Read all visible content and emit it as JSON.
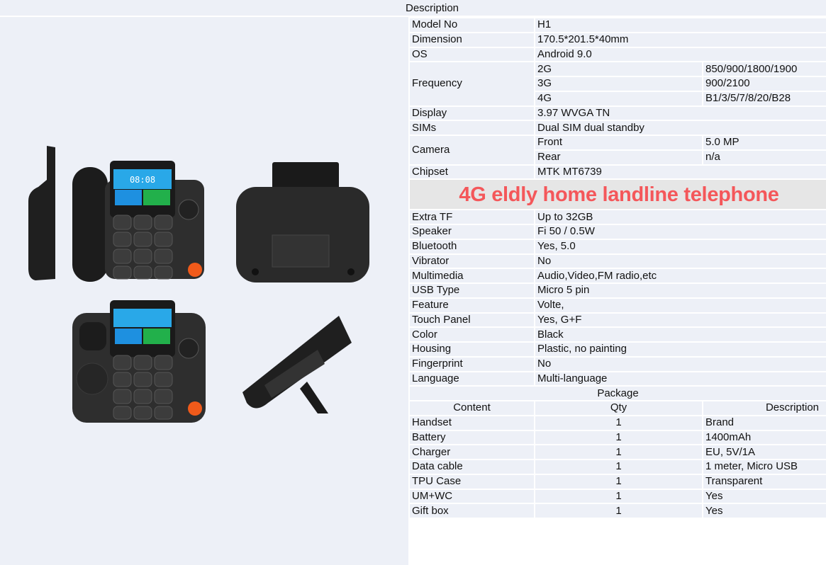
{
  "header": {
    "title": "Description"
  },
  "specs": [
    {
      "label": "Model No",
      "value": "H1"
    },
    {
      "label": "Dimension",
      "value": "170.5*201.5*40mm"
    },
    {
      "label": "OS",
      "value": "Android 9.0"
    }
  ],
  "frequency": {
    "label": "Frequency",
    "bands": [
      {
        "band": "2G",
        "value": "850/900/1800/1900"
      },
      {
        "band": "3G",
        "value": "900/2100"
      },
      {
        "band": "4G",
        "value": "B1/3/5/7/8/20/B28"
      }
    ]
  },
  "specs2": [
    {
      "label": "Display",
      "value": "3.97 WVGA TN"
    },
    {
      "label": "SIMs",
      "value": "Dual SIM dual standby"
    }
  ],
  "camera": {
    "label": "Camera",
    "items": [
      {
        "name": "Front",
        "value": "5.0 MP"
      },
      {
        "name": "Rear",
        "value": "n/a"
      }
    ]
  },
  "chipset": {
    "label": "Chipset",
    "value": "MTK MT6739"
  },
  "banner": "4G eldly home landline telephone",
  "specs3": [
    {
      "label": "Extra TF",
      "value": "Up to 32GB"
    },
    {
      "label": "Speaker",
      "value": "Fi 50 / 0.5W"
    },
    {
      "label": "Bluetooth",
      "value": "Yes, 5.0"
    },
    {
      "label": "Vibrator",
      "value": "No"
    },
    {
      "label": "Multimedia",
      "value": "Audio,Video,FM radio,etc"
    },
    {
      "label": "USB Type",
      "value": "Micro 5 pin"
    },
    {
      "label": "Feature",
      "value": "Volte,"
    },
    {
      "label": "Touch Panel",
      "value": "Yes, G+F"
    },
    {
      "label": "Color",
      "value": "Black"
    },
    {
      "label": "Housing",
      "value": "Plastic, no painting"
    },
    {
      "label": "Fingerprint",
      "value": "No"
    },
    {
      "label": "Language",
      "value": "Multi-language"
    }
  ],
  "package": {
    "title": "Package",
    "columns": [
      "Content",
      "Qty",
      "Description"
    ],
    "rows": [
      [
        "Handset",
        "1",
        "Brand"
      ],
      [
        "Battery",
        "1",
        "1400mAh"
      ],
      [
        "Charger",
        "1",
        "EU, 5V/1A"
      ],
      [
        "Data cable",
        "1",
        "1 meter, Micro USB"
      ],
      [
        "TPU Case",
        "1",
        "Transparent"
      ],
      [
        "UM+WC",
        "1",
        "Yes"
      ],
      [
        "Gift box",
        "1",
        "Yes"
      ]
    ]
  },
  "product_images": {
    "screen_time": "08:08",
    "colors": {
      "body": "#2a2a2a",
      "screen": "#29a8e8",
      "whatsapp": "#22b04b",
      "speaker_key": "#f05a1a"
    }
  }
}
